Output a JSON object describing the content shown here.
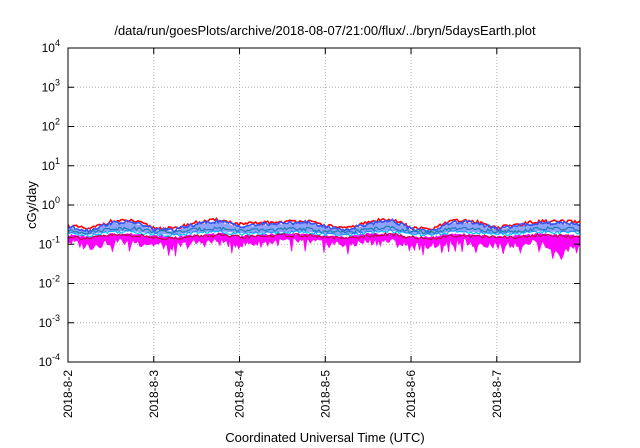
{
  "chart_data": {
    "type": "area",
    "title": "/data/run/goesPlots/archive/2018-08-07/21:00/flux/../bryn/5daysEarth.plot",
    "xlabel": "Coordinated Universal Time (UTC)",
    "ylabel": "cGy/day",
    "yscale": "log",
    "ylim": [
      0.0001,
      10000
    ],
    "xlim": [
      0,
      5.97
    ],
    "grid": true,
    "x_ticks": [
      {
        "pos": 0,
        "label": "2018-8-2"
      },
      {
        "pos": 1,
        "label": "2018-8-3"
      },
      {
        "pos": 2,
        "label": "2018-8-4"
      },
      {
        "pos": 3,
        "label": "2018-8-5"
      },
      {
        "pos": 4,
        "label": "2018-8-6"
      },
      {
        "pos": 5,
        "label": "2018-8-7"
      }
    ],
    "y_ticks": [
      {
        "exp": -4,
        "value": 0.0001
      },
      {
        "exp": -3,
        "value": 0.001
      },
      {
        "exp": -2,
        "value": 0.01
      },
      {
        "exp": -1,
        "value": 0.1
      },
      {
        "exp": 0,
        "value": 1
      },
      {
        "exp": 1,
        "value": 10
      },
      {
        "exp": 2,
        "value": 100
      },
      {
        "exp": 3,
        "value": 1000
      },
      {
        "exp": 4,
        "value": 10000
      }
    ],
    "x": [
      0,
      0.25,
      0.5,
      0.75,
      1.0,
      1.25,
      1.5,
      1.75,
      2.0,
      2.25,
      2.5,
      2.75,
      3.0,
      3.25,
      3.5,
      3.75,
      4.0,
      4.25,
      4.5,
      4.75,
      5.0,
      5.25,
      5.5,
      5.75,
      5.97
    ],
    "band": {
      "color": "#ff00ff",
      "upper": [
        0.17,
        0.15,
        0.18,
        0.18,
        0.16,
        0.15,
        0.17,
        0.18,
        0.16,
        0.17,
        0.18,
        0.18,
        0.16,
        0.15,
        0.18,
        0.18,
        0.15,
        0.15,
        0.18,
        0.17,
        0.15,
        0.16,
        0.18,
        0.17,
        0.16
      ],
      "lower": [
        0.12,
        0.09,
        0.12,
        0.12,
        0.1,
        0.09,
        0.11,
        0.12,
        0.1,
        0.11,
        0.12,
        0.12,
        0.11,
        0.1,
        0.12,
        0.12,
        0.09,
        0.1,
        0.12,
        0.11,
        0.1,
        0.11,
        0.12,
        0.05,
        0.12
      ]
    },
    "series": [
      {
        "color": "#ff0000",
        "values": [
          0.3,
          0.24,
          0.38,
          0.4,
          0.26,
          0.25,
          0.36,
          0.42,
          0.32,
          0.35,
          0.37,
          0.4,
          0.3,
          0.25,
          0.36,
          0.45,
          0.26,
          0.24,
          0.4,
          0.38,
          0.26,
          0.32,
          0.38,
          0.38,
          0.36
        ]
      },
      {
        "color": "#3355ff",
        "values": [
          0.28,
          0.22,
          0.35,
          0.37,
          0.24,
          0.23,
          0.33,
          0.39,
          0.29,
          0.32,
          0.34,
          0.37,
          0.28,
          0.23,
          0.33,
          0.42,
          0.24,
          0.22,
          0.37,
          0.35,
          0.24,
          0.3,
          0.35,
          0.35,
          0.33
        ]
      },
      {
        "color": "#00b050",
        "values": [
          0.22,
          0.2,
          0.25,
          0.26,
          0.21,
          0.2,
          0.24,
          0.26,
          0.22,
          0.23,
          0.24,
          0.25,
          0.21,
          0.2,
          0.24,
          0.27,
          0.21,
          0.2,
          0.25,
          0.24,
          0.21,
          0.22,
          0.25,
          0.25,
          0.24
        ]
      },
      {
        "color": "#00c8ff",
        "values": [
          0.19,
          0.17,
          0.21,
          0.21,
          0.18,
          0.17,
          0.2,
          0.21,
          0.19,
          0.19,
          0.2,
          0.21,
          0.18,
          0.17,
          0.2,
          0.22,
          0.18,
          0.17,
          0.21,
          0.2,
          0.18,
          0.19,
          0.21,
          0.2,
          0.2
        ]
      },
      {
        "color": "#c00040",
        "values": [
          0.16,
          0.14,
          0.17,
          0.17,
          0.15,
          0.14,
          0.16,
          0.17,
          0.15,
          0.16,
          0.17,
          0.17,
          0.15,
          0.14,
          0.16,
          0.18,
          0.15,
          0.14,
          0.17,
          0.16,
          0.15,
          0.15,
          0.17,
          0.16,
          0.16
        ]
      }
    ]
  }
}
